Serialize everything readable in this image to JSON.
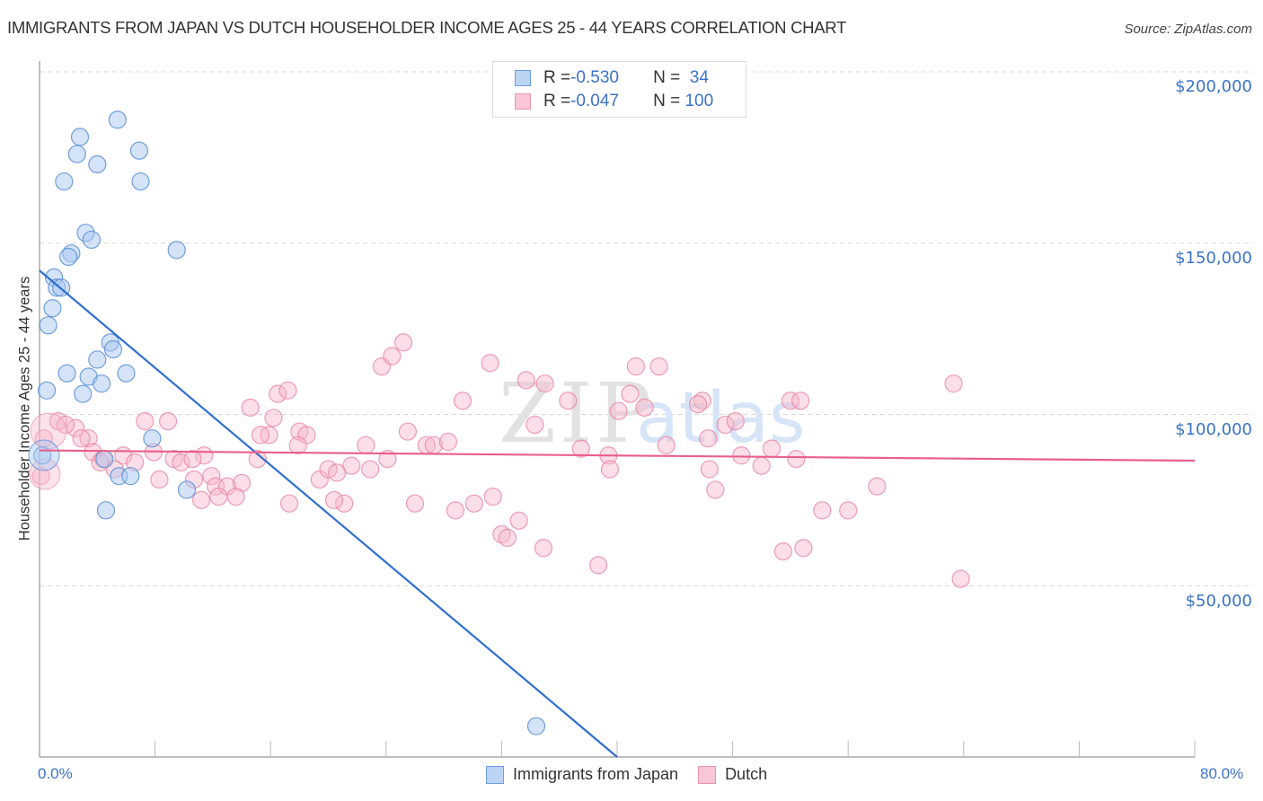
{
  "header": {
    "title": "IMMIGRANTS FROM JAPAN VS DUTCH HOUSEHOLDER INCOME AGES 25 - 44 YEARS CORRELATION CHART",
    "source": "Source: ZipAtlas.com"
  },
  "legend": {
    "rows": [
      {
        "r_label": "R = ",
        "r_value": "-0.530",
        "n_label": "N = ",
        "n_value": " 34"
      },
      {
        "r_label": "R = ",
        "r_value": "-0.047",
        "n_label": "N = ",
        "n_value": "100"
      }
    ]
  },
  "bottom_legend": {
    "series_a": "Immigrants from Japan",
    "series_b": "Dutch"
  },
  "axes": {
    "ylabel": "Householder Income Ages 25 - 44 years",
    "x_min_label": "0.0%",
    "x_max_label": "80.0%",
    "y_ticks": [
      "$200,000",
      "$150,000",
      "$100,000",
      "$50,000"
    ]
  },
  "colors": {
    "japan_fill": "#aac8f0",
    "japan_stroke": "#5b8fd8",
    "japan_line": "#2f6fd0",
    "dutch_fill": "#f7b6c9",
    "dutch_stroke": "#e87f9f",
    "dutch_line": "#e8608a",
    "tick_text": "#3b73c8",
    "grid": "#d8d8d8"
  },
  "chart_data": {
    "type": "scatter",
    "title": "Immigrants from Japan vs Dutch Householder Income Ages 25 - 44 years Correlation Chart",
    "xlabel": "Immigrants from Japan (%)",
    "ylabel": "Householder Income Ages 25 - 44 years",
    "xlim": [
      0,
      80
    ],
    "ylim": [
      0,
      210000
    ],
    "y_gridlines": [
      50000,
      100000,
      150000,
      200000
    ],
    "legend_position": "top-center",
    "series": [
      {
        "name": "Immigrants from Japan",
        "R": -0.53,
        "N": 34,
        "trend": {
          "x": [
            0,
            40
          ],
          "y": [
            142000,
            0
          ]
        },
        "points": [
          [
            5.4,
            186000
          ],
          [
            2.8,
            181000
          ],
          [
            6.9,
            177000
          ],
          [
            2.6,
            176000
          ],
          [
            4.0,
            173000
          ],
          [
            1.7,
            168000
          ],
          [
            7.0,
            168000
          ],
          [
            3.2,
            153000
          ],
          [
            3.6,
            151000
          ],
          [
            9.5,
            148000
          ],
          [
            2.2,
            147000
          ],
          [
            2.0,
            146000
          ],
          [
            1.0,
            140000
          ],
          [
            1.2,
            137000
          ],
          [
            1.5,
            137000
          ],
          [
            0.9,
            131000
          ],
          [
            0.6,
            126000
          ],
          [
            4.9,
            121000
          ],
          [
            5.1,
            119000
          ],
          [
            4.0,
            116000
          ],
          [
            1.9,
            112000
          ],
          [
            3.4,
            111000
          ],
          [
            6.0,
            112000
          ],
          [
            4.3,
            109000
          ],
          [
            0.5,
            107000
          ],
          [
            3.0,
            106000
          ],
          [
            7.8,
            93000
          ],
          [
            0.2,
            88000
          ],
          [
            4.5,
            87000
          ],
          [
            5.5,
            82000
          ],
          [
            6.3,
            82000
          ],
          [
            10.2,
            78000
          ],
          [
            4.6,
            72000
          ],
          [
            34.4,
            9000
          ]
        ]
      },
      {
        "name": "Dutch",
        "R": -0.047,
        "N": 100,
        "trend": {
          "x": [
            0,
            80
          ],
          "y": [
            89500,
            86500
          ]
        },
        "points": [
          [
            1.3,
            98000
          ],
          [
            0.3,
            93000
          ],
          [
            0.1,
            82000
          ],
          [
            2.5,
            96000
          ],
          [
            1.8,
            97000
          ],
          [
            3.4,
            93000
          ],
          [
            2.9,
            93000
          ],
          [
            3.7,
            89000
          ],
          [
            4.4,
            87000
          ],
          [
            5.2,
            84000
          ],
          [
            4.2,
            86000
          ],
          [
            5.8,
            88000
          ],
          [
            6.6,
            86000
          ],
          [
            7.3,
            98000
          ],
          [
            8.9,
            98000
          ],
          [
            7.9,
            89000
          ],
          [
            9.3,
            87000
          ],
          [
            8.3,
            81000
          ],
          [
            9.8,
            86000
          ],
          [
            11.4,
            88000
          ],
          [
            10.7,
            81000
          ],
          [
            11.9,
            82000
          ],
          [
            12.2,
            79000
          ],
          [
            11.2,
            75000
          ],
          [
            13.0,
            79000
          ],
          [
            14.0,
            80000
          ],
          [
            12.4,
            76000
          ],
          [
            13.6,
            76000
          ],
          [
            14.6,
            102000
          ],
          [
            15.9,
            94000
          ],
          [
            15.1,
            87000
          ],
          [
            16.2,
            99000
          ],
          [
            16.5,
            106000
          ],
          [
            17.2,
            107000
          ],
          [
            18.0,
            95000
          ],
          [
            18.5,
            94000
          ],
          [
            17.9,
            91000
          ],
          [
            17.3,
            74000
          ],
          [
            19.4,
            81000
          ],
          [
            20.0,
            84000
          ],
          [
            21.1,
            74000
          ],
          [
            20.4,
            75000
          ],
          [
            21.6,
            85000
          ],
          [
            22.6,
            91000
          ],
          [
            23.7,
            114000
          ],
          [
            24.4,
            117000
          ],
          [
            25.2,
            121000
          ],
          [
            22.9,
            84000
          ],
          [
            24.1,
            87000
          ],
          [
            25.5,
            95000
          ],
          [
            26.0,
            74000
          ],
          [
            26.8,
            91000
          ],
          [
            27.3,
            91000
          ],
          [
            28.3,
            92000
          ],
          [
            28.8,
            72000
          ],
          [
            29.3,
            104000
          ],
          [
            30.1,
            74000
          ],
          [
            31.2,
            115000
          ],
          [
            31.4,
            76000
          ],
          [
            32.0,
            65000
          ],
          [
            32.4,
            64000
          ],
          [
            33.2,
            69000
          ],
          [
            34.3,
            97000
          ],
          [
            33.7,
            110000
          ],
          [
            34.9,
            61000
          ],
          [
            35.0,
            109000
          ],
          [
            36.6,
            104000
          ],
          [
            37.5,
            90000
          ],
          [
            38.7,
            56000
          ],
          [
            39.4,
            88000
          ],
          [
            39.5,
            84000
          ],
          [
            40.1,
            101000
          ],
          [
            40.9,
            106000
          ],
          [
            41.3,
            114000
          ],
          [
            42.9,
            114000
          ],
          [
            41.9,
            102000
          ],
          [
            43.4,
            91000
          ],
          [
            45.9,
            104000
          ],
          [
            46.3,
            93000
          ],
          [
            45.6,
            103000
          ],
          [
            46.4,
            84000
          ],
          [
            46.8,
            78000
          ],
          [
            47.5,
            97000
          ],
          [
            48.2,
            98000
          ],
          [
            48.6,
            88000
          ],
          [
            50.0,
            85000
          ],
          [
            50.7,
            90000
          ],
          [
            52.0,
            104000
          ],
          [
            52.7,
            104000
          ],
          [
            52.4,
            87000
          ],
          [
            51.5,
            60000
          ],
          [
            52.9,
            61000
          ],
          [
            54.2,
            72000
          ],
          [
            56.0,
            72000
          ],
          [
            58.0,
            79000
          ],
          [
            63.3,
            109000
          ],
          [
            63.8,
            52000
          ],
          [
            15.3,
            94000
          ],
          [
            20.6,
            83000
          ],
          [
            10.6,
            87000
          ]
        ]
      }
    ]
  }
}
